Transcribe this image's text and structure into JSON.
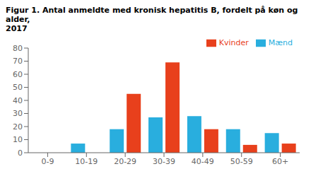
{
  "chart_data": {
    "type": "bar",
    "title": "Figur 1. Antal anmeldte med kronisk hepatitis B, fordelt på køn og alder,\n2017",
    "categories": [
      "0-9",
      "10-19",
      "20-29",
      "30-39",
      "40-49",
      "50-59",
      "60+"
    ],
    "series": [
      {
        "name": "Mænd",
        "color": "#29AEDE",
        "values": [
          0,
          7,
          18,
          27,
          28,
          18,
          15
        ]
      },
      {
        "name": "Kvinder",
        "color": "#E8401C",
        "values": [
          0,
          0,
          45,
          69,
          18,
          6,
          7
        ]
      }
    ],
    "ylim": [
      0,
      80
    ],
    "yticks": [
      0,
      10,
      20,
      30,
      40,
      50,
      60,
      70,
      80
    ],
    "grid": false,
    "legend": "upper right"
  }
}
